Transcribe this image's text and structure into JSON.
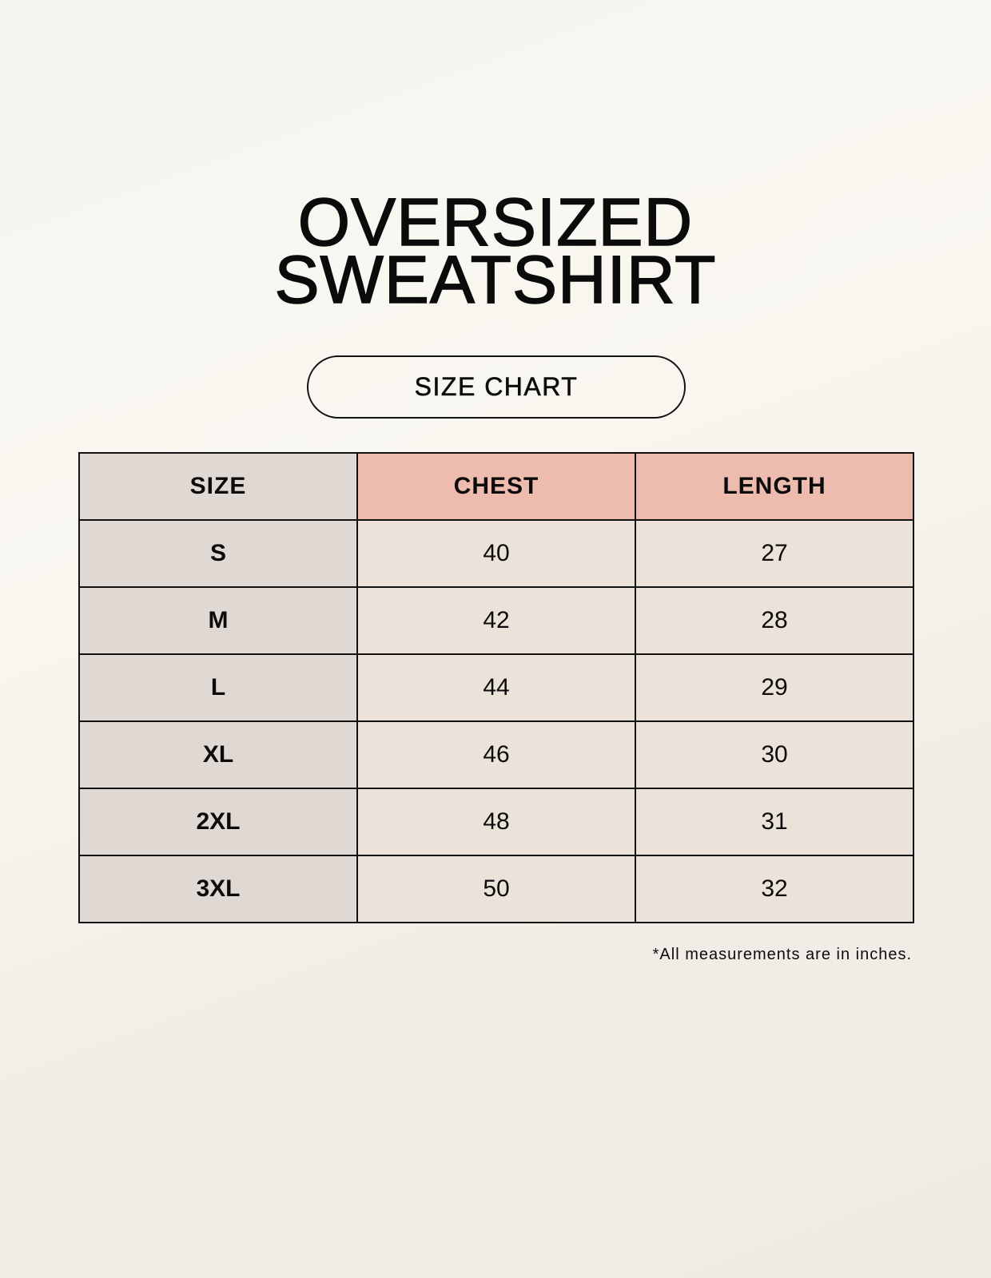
{
  "title_lines": [
    "OVERSIZED",
    "SWEATSHIRT"
  ],
  "badge": "SIZE CHART",
  "table": {
    "headers": [
      "SIZE",
      "CHEST",
      "LENGTH"
    ],
    "rows": [
      [
        "S",
        "40",
        "27"
      ],
      [
        "M",
        "42",
        "28"
      ],
      [
        "L",
        "44",
        "29"
      ],
      [
        "XL",
        "46",
        "30"
      ],
      [
        "2XL",
        "48",
        "31"
      ],
      [
        "3XL",
        "50",
        "32"
      ]
    ]
  },
  "footnote": "*All measurements are in inches.",
  "colors": {
    "size_column": "#e0d8d3",
    "header_accent": "#edbcae",
    "cell": "#ebe3d9"
  }
}
